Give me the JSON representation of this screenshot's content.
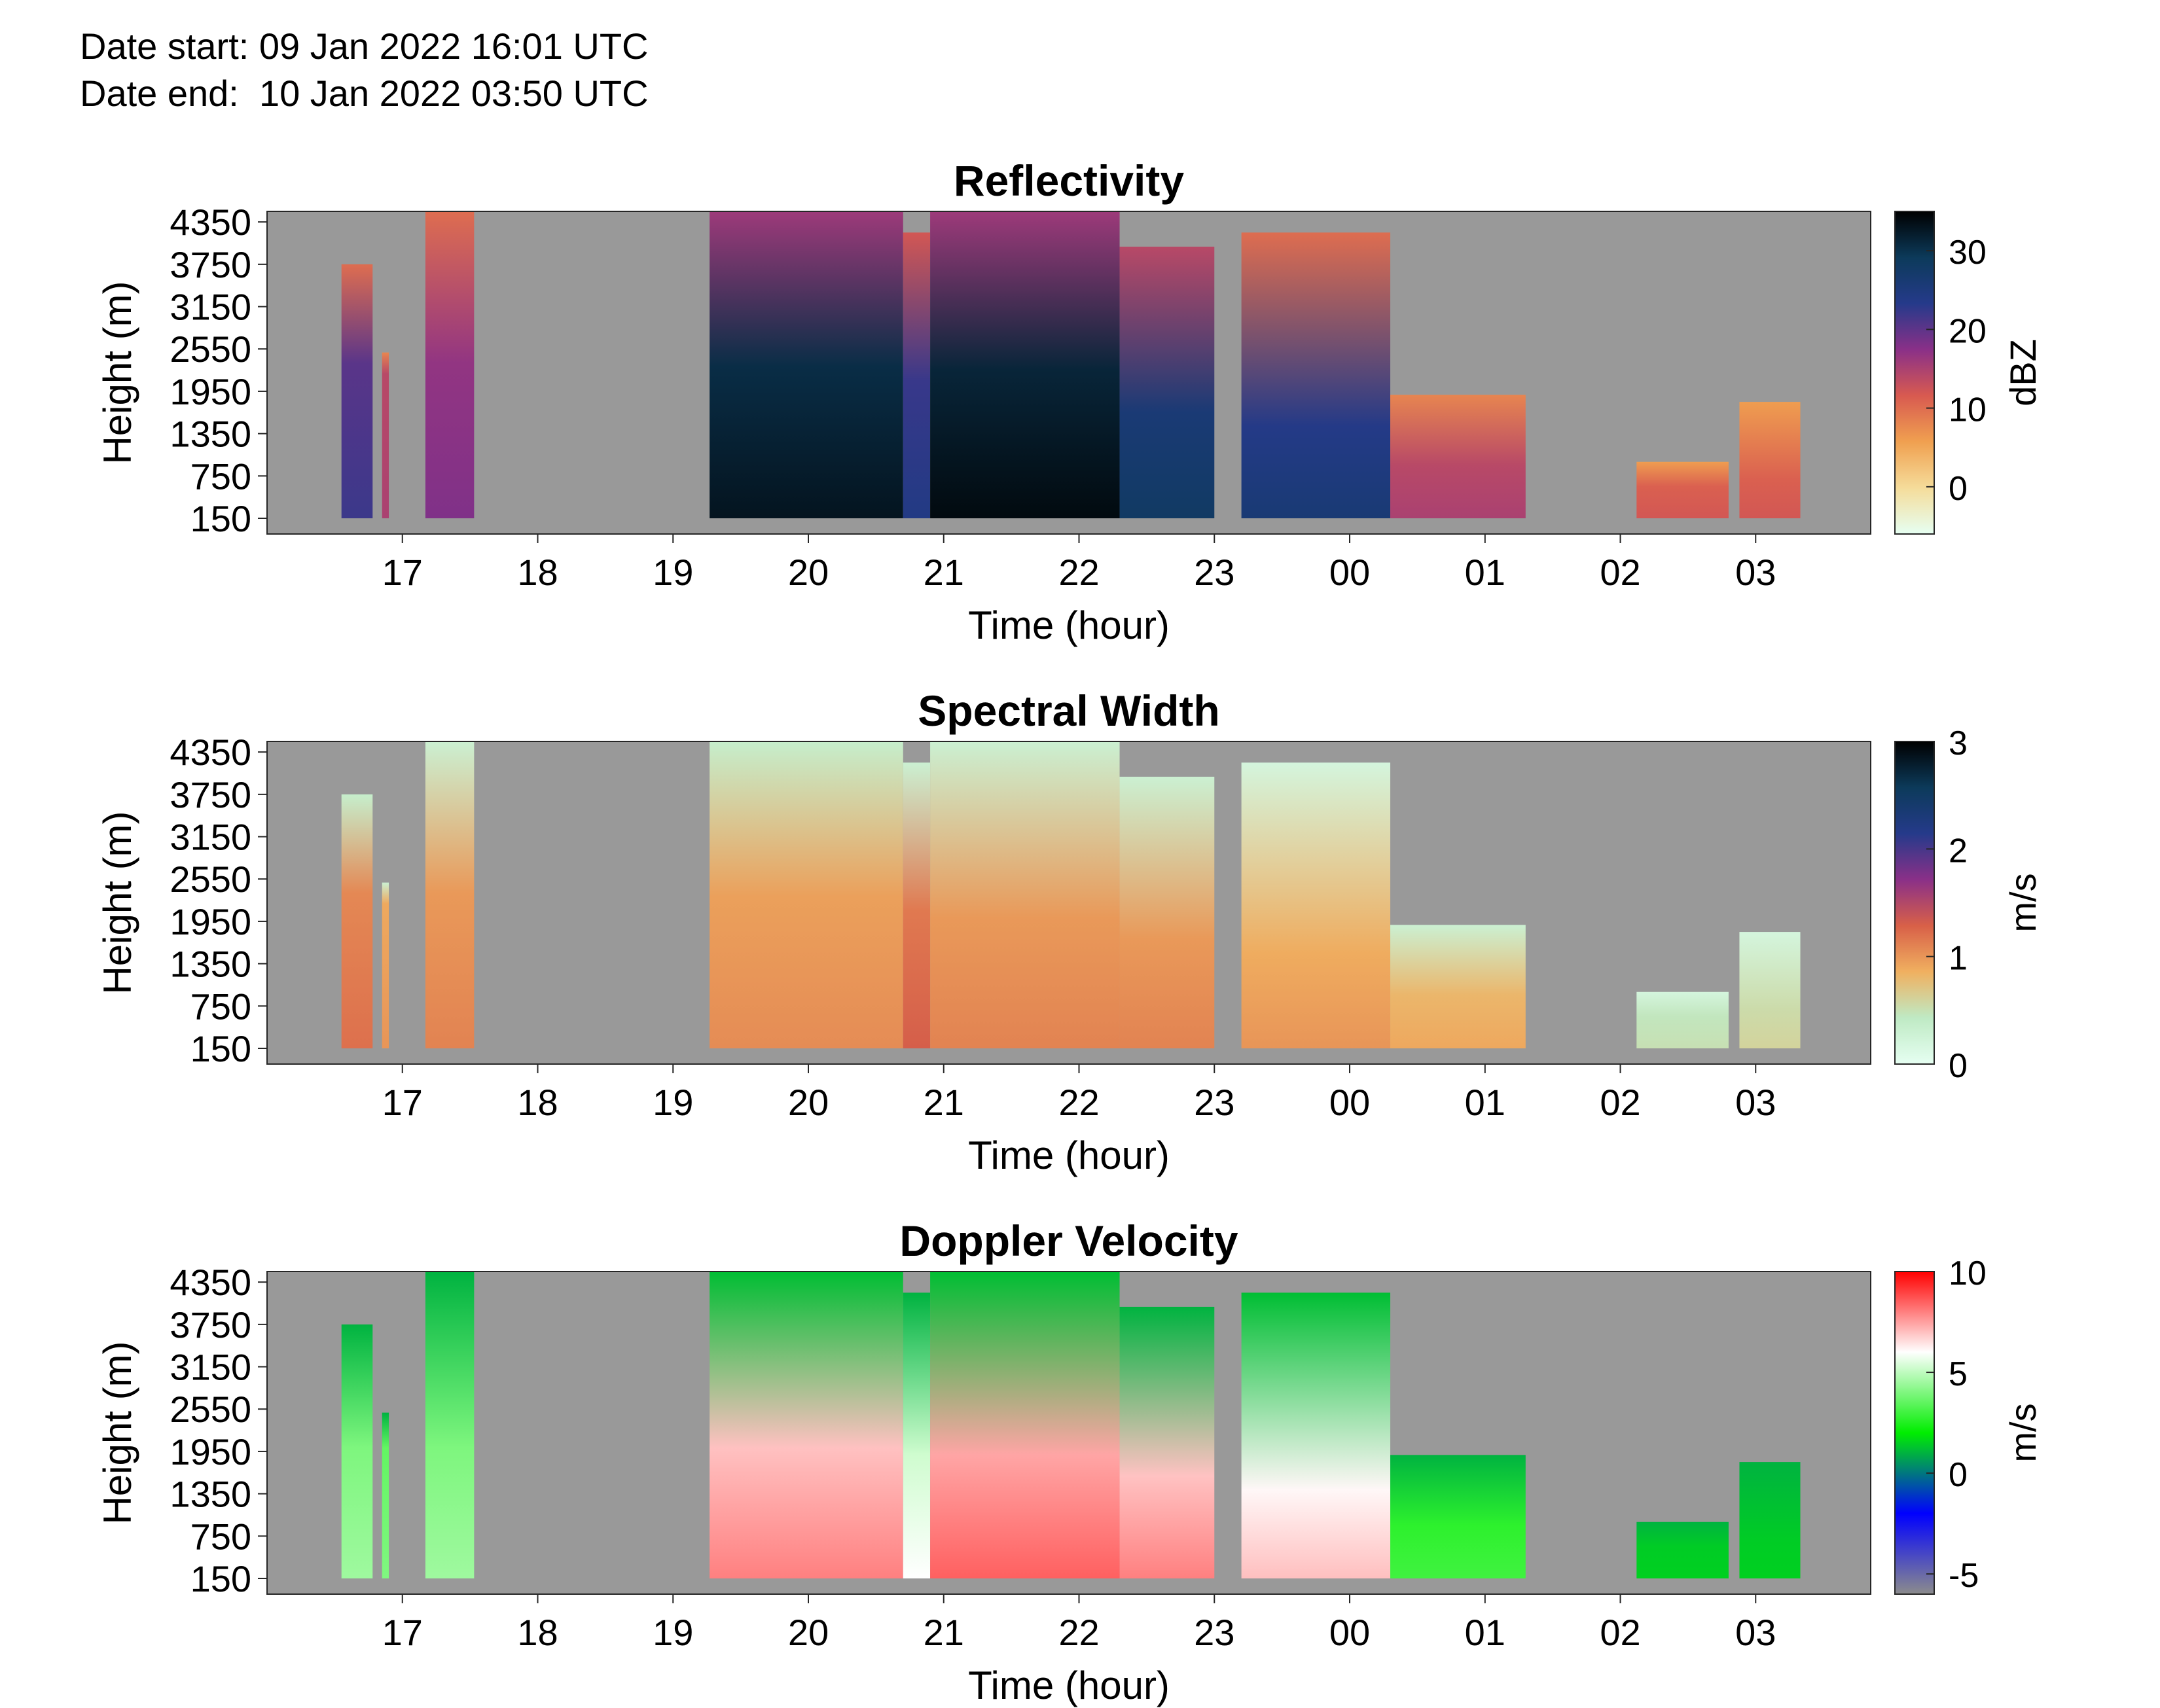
{
  "header": {
    "date_start": "Date start: 09 Jan 2022 16:01 UTC",
    "date_end": "Date end:  10 Jan 2022 03:50 UTC"
  },
  "chart_data": [
    {
      "type": "heatmap",
      "title": "Reflectivity",
      "xlabel": "Time (hour)",
      "ylabel": "Height (m)",
      "x_ticks": [
        "17",
        "18",
        "19",
        "20",
        "21",
        "22",
        "23",
        "00",
        "01",
        "02",
        "03"
      ],
      "y_ticks": [
        150,
        750,
        1350,
        1950,
        2550,
        3150,
        3750,
        4350
      ],
      "ylim": [
        150,
        4500
      ],
      "colorbar": {
        "label": "dBZ",
        "ticks": [
          0,
          10,
          20,
          30
        ],
        "range": [
          -6,
          35
        ],
        "colors": [
          "#e6fff2",
          "#f5dc9a",
          "#f0a050",
          "#d85a50",
          "#8a3088",
          "#253a8a",
          "#0c3a5a",
          "#000000"
        ]
      },
      "background": "#999999",
      "echo_regions": [
        {
          "start_hour": 16.55,
          "end_hour": 16.78,
          "top_m": 3750,
          "core_top_m": 2350,
          "core_value": 22,
          "upper_value": 10
        },
        {
          "start_hour": 16.85,
          "end_hour": 16.9,
          "top_m": 2500,
          "core_top_m": 2200,
          "core_value": 15,
          "upper_value": 8
        },
        {
          "start_hour": 17.17,
          "end_hour": 17.53,
          "top_m": 4500,
          "core_top_m": 2350,
          "core_value": 18,
          "upper_value": 10
        },
        {
          "start_hour": 19.27,
          "end_hour": 20.7,
          "top_m": 4500,
          "core_top_m": 2300,
          "core_value": 33,
          "upper_value": 16
        },
        {
          "start_hour": 20.7,
          "end_hour": 20.9,
          "top_m": 4200,
          "core_top_m": 2100,
          "core_value": 24,
          "upper_value": 12
        },
        {
          "start_hour": 20.9,
          "end_hour": 22.3,
          "top_m": 4500,
          "core_top_m": 2250,
          "core_value": 34,
          "upper_value": 16
        },
        {
          "start_hour": 22.3,
          "end_hour": 23.0,
          "top_m": 4000,
          "core_top_m": 1650,
          "core_value": 28,
          "upper_value": 14
        },
        {
          "start_hour": 23.2,
          "end_hour": 24.3,
          "top_m": 4200,
          "core_top_m": 1450,
          "core_value": 26,
          "upper_value": 10
        },
        {
          "start_hour": 24.3,
          "end_hour": 25.3,
          "top_m": 1900,
          "core_top_m": 900,
          "core_value": 15,
          "upper_value": 8
        },
        {
          "start_hour": 26.12,
          "end_hour": 26.8,
          "top_m": 950,
          "core_top_m": 600,
          "core_value": 12,
          "upper_value": 6
        },
        {
          "start_hour": 26.88,
          "end_hour": 27.33,
          "top_m": 1800,
          "core_top_m": 700,
          "core_value": 12,
          "upper_value": 6
        }
      ]
    },
    {
      "type": "heatmap",
      "title": "Spectral Width",
      "xlabel": "Time (hour)",
      "ylabel": "Height (m)",
      "x_ticks": [
        "17",
        "18",
        "19",
        "20",
        "21",
        "22",
        "23",
        "00",
        "01",
        "02",
        "03"
      ],
      "y_ticks": [
        150,
        750,
        1350,
        1950,
        2550,
        3150,
        3750,
        4350
      ],
      "ylim": [
        150,
        4500
      ],
      "colorbar": {
        "label": "m/s",
        "ticks": [
          0,
          1,
          2,
          3
        ],
        "range": [
          0,
          3
        ],
        "colors": [
          "#e6fff2",
          "#bfeac4",
          "#f0b060",
          "#d86048",
          "#8a3088",
          "#253a8a",
          "#0c3a5a",
          "#000000"
        ]
      },
      "background": "#999999",
      "echo_regions": [
        {
          "start_hour": 16.55,
          "end_hour": 16.78,
          "top_m": 3750,
          "core_top_m": 2350,
          "core_value": 1.2,
          "upper_value": 0.35
        },
        {
          "start_hour": 16.85,
          "end_hour": 16.9,
          "top_m": 2500,
          "core_top_m": 2200,
          "core_value": 1.0,
          "upper_value": 0.3
        },
        {
          "start_hour": 17.17,
          "end_hour": 17.53,
          "top_m": 4500,
          "core_top_m": 2350,
          "core_value": 1.1,
          "upper_value": 0.3
        },
        {
          "start_hour": 19.27,
          "end_hour": 20.7,
          "top_m": 4500,
          "core_top_m": 2300,
          "core_value": 1.05,
          "upper_value": 0.35
        },
        {
          "start_hour": 20.7,
          "end_hour": 20.9,
          "top_m": 4200,
          "core_top_m": 2100,
          "core_value": 1.3,
          "upper_value": 0.3
        },
        {
          "start_hour": 20.9,
          "end_hour": 22.3,
          "top_m": 4500,
          "core_top_m": 2000,
          "core_value": 1.1,
          "upper_value": 0.3
        },
        {
          "start_hour": 22.3,
          "end_hour": 23.0,
          "top_m": 4000,
          "core_top_m": 1700,
          "core_value": 1.1,
          "upper_value": 0.3
        },
        {
          "start_hour": 23.2,
          "end_hour": 24.3,
          "top_m": 4200,
          "core_top_m": 1500,
          "core_value": 1.0,
          "upper_value": 0.2
        },
        {
          "start_hour": 24.3,
          "end_hour": 25.3,
          "top_m": 1900,
          "core_top_m": 900,
          "core_value": 0.9,
          "upper_value": 0.3
        },
        {
          "start_hour": 26.12,
          "end_hour": 26.8,
          "top_m": 950,
          "core_top_m": 600,
          "core_value": 0.5,
          "upper_value": 0.2
        },
        {
          "start_hour": 26.88,
          "end_hour": 27.33,
          "top_m": 1800,
          "core_top_m": 700,
          "core_value": 0.6,
          "upper_value": 0.2
        }
      ]
    },
    {
      "type": "heatmap",
      "title": "Doppler Velocity",
      "xlabel": "Time (hour)",
      "ylabel": "Height (m)",
      "x_ticks": [
        "17",
        "18",
        "19",
        "20",
        "21",
        "22",
        "23",
        "00",
        "01",
        "02",
        "03"
      ],
      "y_ticks": [
        150,
        750,
        1350,
        1950,
        2550,
        3150,
        3750,
        4350
      ],
      "ylim": [
        150,
        4500
      ],
      "colorbar": {
        "label": "m/s",
        "ticks": [
          -5,
          0,
          5,
          10
        ],
        "range": [
          -6,
          10
        ],
        "colors": [
          "#8c8c8c",
          "#0000ff",
          "#00ee00",
          "#ffffff",
          "#ff0000"
        ]
      },
      "background": "#999999",
      "echo_regions": [
        {
          "start_hour": 16.55,
          "end_hour": 16.78,
          "top_m": 3750,
          "core_top_m": 2000,
          "core_value": 4.5,
          "upper_value": 1.0
        },
        {
          "start_hour": 16.85,
          "end_hour": 16.9,
          "top_m": 2500,
          "core_top_m": 2000,
          "core_value": 4.0,
          "upper_value": 1.0
        },
        {
          "start_hour": 17.17,
          "end_hour": 17.53,
          "top_m": 4500,
          "core_top_m": 2000,
          "core_value": 4.5,
          "upper_value": 1.0
        },
        {
          "start_hour": 19.27,
          "end_hour": 20.7,
          "top_m": 4500,
          "core_top_m": 2000,
          "core_value": 8.0,
          "upper_value": 1.2
        },
        {
          "start_hour": 20.7,
          "end_hour": 20.9,
          "top_m": 4200,
          "core_top_m": 1900,
          "core_value": 6.0,
          "upper_value": 1.0
        },
        {
          "start_hour": 20.9,
          "end_hour": 22.3,
          "top_m": 4500,
          "core_top_m": 1900,
          "core_value": 8.5,
          "upper_value": 1.2
        },
        {
          "start_hour": 22.3,
          "end_hour": 23.0,
          "top_m": 4000,
          "core_top_m": 1600,
          "core_value": 8.0,
          "upper_value": 1.0
        },
        {
          "start_hour": 23.2,
          "end_hour": 24.3,
          "top_m": 4200,
          "core_top_m": 1400,
          "core_value": 7.0,
          "upper_value": 1.2
        },
        {
          "start_hour": 24.3,
          "end_hour": 25.3,
          "top_m": 1900,
          "core_top_m": 900,
          "core_value": 3.0,
          "upper_value": 1.0
        },
        {
          "start_hour": 26.12,
          "end_hour": 26.8,
          "top_m": 950,
          "core_top_m": 600,
          "core_value": 1.5,
          "upper_value": 1.0
        },
        {
          "start_hour": 26.88,
          "end_hour": 27.33,
          "top_m": 1800,
          "core_top_m": 700,
          "core_value": 1.5,
          "upper_value": 1.0
        }
      ]
    }
  ]
}
